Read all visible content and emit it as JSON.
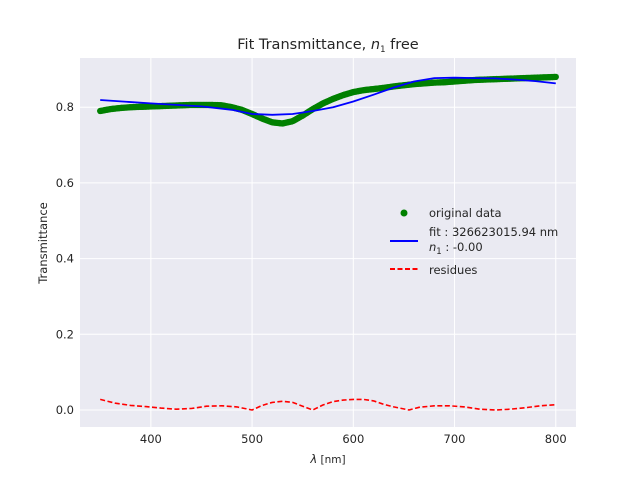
{
  "chart_data": {
    "type": "line",
    "title": {
      "prefix": "Fit Transmittance, ",
      "var": "n",
      "sub": "1",
      "suffix": " free"
    },
    "xlabel": {
      "var": "λ",
      "unit": " [nm]"
    },
    "ylabel": "Transmittance",
    "xlim": [
      330,
      820
    ],
    "ylim": [
      -0.045,
      0.93
    ],
    "xticks": [
      400,
      500,
      600,
      700,
      800
    ],
    "yticks": [
      0.0,
      0.2,
      0.4,
      0.6,
      0.8
    ],
    "grid": true,
    "legend_position": "center-right",
    "series": [
      {
        "name": "original data",
        "style": "markers",
        "color": "#008000",
        "points": [
          [
            350,
            0.79
          ],
          [
            360,
            0.795
          ],
          [
            370,
            0.798
          ],
          [
            380,
            0.8
          ],
          [
            390,
            0.801
          ],
          [
            400,
            0.802
          ],
          [
            410,
            0.803
          ],
          [
            420,
            0.804
          ],
          [
            430,
            0.805
          ],
          [
            440,
            0.806
          ],
          [
            450,
            0.806
          ],
          [
            460,
            0.806
          ],
          [
            470,
            0.805
          ],
          [
            480,
            0.8
          ],
          [
            490,
            0.793
          ],
          [
            500,
            0.782
          ],
          [
            510,
            0.77
          ],
          [
            520,
            0.76
          ],
          [
            530,
            0.757
          ],
          [
            540,
            0.763
          ],
          [
            550,
            0.778
          ],
          [
            560,
            0.795
          ],
          [
            570,
            0.81
          ],
          [
            580,
            0.822
          ],
          [
            590,
            0.832
          ],
          [
            600,
            0.84
          ],
          [
            610,
            0.845
          ],
          [
            620,
            0.848
          ],
          [
            630,
            0.851
          ],
          [
            640,
            0.855
          ],
          [
            650,
            0.858
          ],
          [
            660,
            0.861
          ],
          [
            670,
            0.863
          ],
          [
            680,
            0.865
          ],
          [
            690,
            0.866
          ],
          [
            700,
            0.868
          ],
          [
            710,
            0.87
          ],
          [
            720,
            0.872
          ],
          [
            730,
            0.873
          ],
          [
            740,
            0.874
          ],
          [
            750,
            0.875
          ],
          [
            760,
            0.876
          ],
          [
            770,
            0.877
          ],
          [
            780,
            0.878
          ],
          [
            790,
            0.879
          ],
          [
            800,
            0.88
          ]
        ]
      },
      {
        "name": "fit : 326623015.94 nm",
        "name_line2": {
          "var": "n",
          "sub": "1",
          "rest": " : -0.00"
        },
        "style": "line",
        "color": "#0000ff",
        "points": [
          [
            350,
            0.819
          ],
          [
            400,
            0.81
          ],
          [
            450,
            0.802
          ],
          [
            480,
            0.793
          ],
          [
            500,
            0.782
          ],
          [
            520,
            0.78
          ],
          [
            540,
            0.782
          ],
          [
            560,
            0.79
          ],
          [
            580,
            0.8
          ],
          [
            600,
            0.815
          ],
          [
            620,
            0.833
          ],
          [
            640,
            0.852
          ],
          [
            660,
            0.868
          ],
          [
            680,
            0.877
          ],
          [
            700,
            0.878
          ],
          [
            720,
            0.877
          ],
          [
            740,
            0.876
          ],
          [
            760,
            0.873
          ],
          [
            780,
            0.869
          ],
          [
            800,
            0.863
          ]
        ]
      },
      {
        "name": "residues",
        "style": "dashed",
        "color": "#ff0000",
        "points": [
          [
            350,
            0.028
          ],
          [
            365,
            0.018
          ],
          [
            380,
            0.012
          ],
          [
            395,
            0.009
          ],
          [
            410,
            0.005
          ],
          [
            425,
            0.002
          ],
          [
            440,
            0.004
          ],
          [
            455,
            0.01
          ],
          [
            470,
            0.011
          ],
          [
            485,
            0.008
          ],
          [
            500,
            0.0
          ],
          [
            510,
            0.012
          ],
          [
            520,
            0.02
          ],
          [
            530,
            0.023
          ],
          [
            540,
            0.02
          ],
          [
            550,
            0.01
          ],
          [
            560,
            0.0
          ],
          [
            570,
            0.013
          ],
          [
            580,
            0.022
          ],
          [
            590,
            0.026
          ],
          [
            600,
            0.028
          ],
          [
            610,
            0.028
          ],
          [
            620,
            0.024
          ],
          [
            630,
            0.015
          ],
          [
            640,
            0.008
          ],
          [
            655,
            0.0
          ],
          [
            665,
            0.007
          ],
          [
            680,
            0.011
          ],
          [
            695,
            0.011
          ],
          [
            710,
            0.008
          ],
          [
            725,
            0.002
          ],
          [
            740,
            0.0
          ],
          [
            755,
            0.002
          ],
          [
            770,
            0.006
          ],
          [
            785,
            0.011
          ],
          [
            800,
            0.014
          ]
        ]
      }
    ]
  }
}
